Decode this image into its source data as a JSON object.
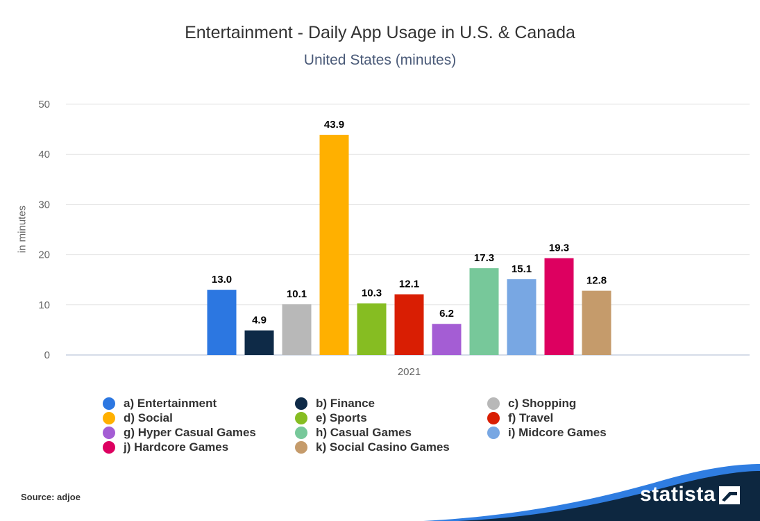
{
  "chart_data": {
    "type": "bar",
    "title": "Entertainment - Daily App Usage in U.S. & Canada",
    "subtitle": "United States (minutes)",
    "ylabel": "in minutes",
    "xlabel": "",
    "categories": [
      "2021"
    ],
    "ylim": [
      0,
      50
    ],
    "yticks": [
      "0",
      "10",
      "20",
      "30",
      "40",
      "50"
    ],
    "grid": true,
    "legend_position": "bottom",
    "series": [
      {
        "name": "a) Entertainment",
        "color": "#2c77e1",
        "values": [
          13.0
        ],
        "label": "13.0"
      },
      {
        "name": "b) Finance",
        "color": "#0e2a47",
        "values": [
          4.9
        ],
        "label": "4.9"
      },
      {
        "name": "c) Shopping",
        "color": "#b8b8b8",
        "values": [
          10.1
        ],
        "label": "10.1"
      },
      {
        "name": "d) Social",
        "color": "#ffb000",
        "values": [
          43.9
        ],
        "label": "43.9"
      },
      {
        "name": "e) Sports",
        "color": "#86bd22",
        "values": [
          10.3
        ],
        "label": "10.3"
      },
      {
        "name": "f) Travel",
        "color": "#d91e03",
        "values": [
          12.1
        ],
        "label": "12.1"
      },
      {
        "name": "g) Hyper Casual Games",
        "color": "#a45dd4",
        "values": [
          6.2
        ],
        "label": "6.2"
      },
      {
        "name": "h) Casual Games",
        "color": "#77c89a",
        "values": [
          17.3
        ],
        "label": "17.3"
      },
      {
        "name": "i) Midcore Games",
        "color": "#78a7e3",
        "values": [
          15.1
        ],
        "label": "15.1"
      },
      {
        "name": "j) Hardcore Games",
        "color": "#dd0060",
        "values": [
          19.3
        ],
        "label": "19.3"
      },
      {
        "name": "k) Social Casino Games",
        "color": "#c59b6b",
        "values": [
          12.8
        ],
        "label": "12.8"
      }
    ]
  },
  "footer": {
    "source": "Source: adjoe",
    "brand": "statista"
  },
  "colors": {
    "brand_dark": "#0d2740",
    "brand_blue": "#2f7de1"
  }
}
